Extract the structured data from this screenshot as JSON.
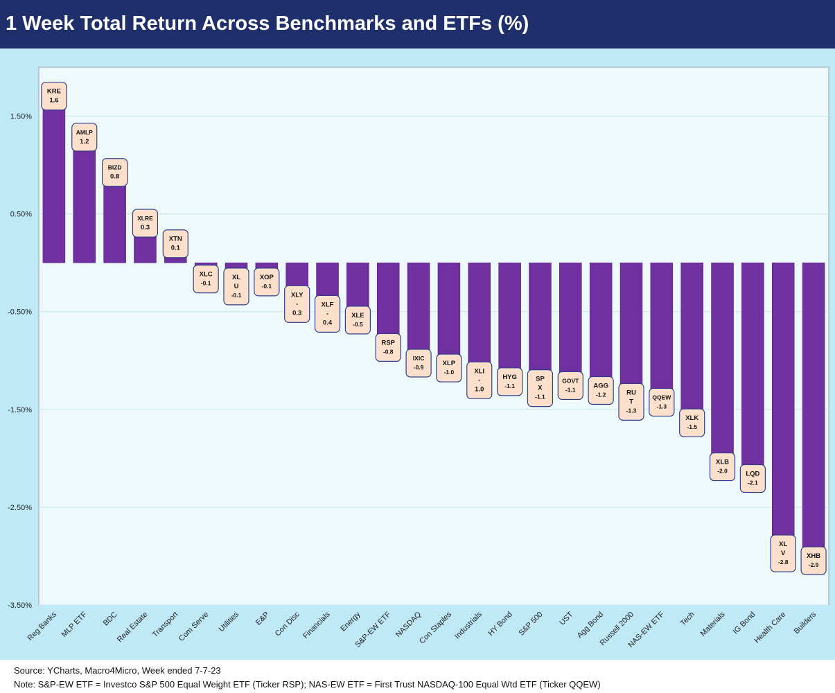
{
  "header": {
    "title": "1 Week Total Return Across Benchmarks and ETFs (%)"
  },
  "footer": {
    "source": "Source: YCharts, Macro4Micro, Week ended 7-7-23",
    "note": "Note: S&P-EW ETF = Investco S&P 500 Equal Weight ETF (Ticker RSP); NAS-EW ETF = First Trust NASDAQ-100 Equal Wtd ETF (Ticker QQEW)"
  },
  "colors": {
    "bar": "#7030a0",
    "bar_edge": "#4a1d7a",
    "label_fill": "#fde0cc",
    "label_border": "#2f3e8c",
    "plot_bg": "#eef9fc",
    "frame_bg": "#bfe9f7",
    "title_bg": "#1f2f6b"
  },
  "chart_data": {
    "type": "bar",
    "title": "1 Week Total Return Across Benchmarks and ETFs (%)",
    "xlabel": "",
    "ylabel": "",
    "ylim": [
      -3.5,
      2.0
    ],
    "yticks": [
      1.5,
      0.5,
      -0.5,
      -1.5,
      -2.5,
      -3.5
    ],
    "ytick_labels": [
      "1.50%",
      "0.50%",
      "-0.50%",
      "-1.50%",
      "-2.50%",
      "-3.50%"
    ],
    "grid": true,
    "categories": [
      "Reg Banks",
      "MLP ETF",
      "BDC",
      "Real Estate",
      "Transport",
      "Com Serve",
      "Utilities",
      "E&P",
      "Con Disc",
      "Financials",
      "Energy",
      "S&P-EW ETF",
      "NASDAQ",
      "Con Staples",
      "Industrials",
      "HY Bond",
      "S&P 500",
      "UST",
      "Agg Bond",
      "Russell 2000",
      "NAS-EW ETF",
      "Tech",
      "Materials",
      "IG Bond",
      "Health Care",
      "Builders"
    ],
    "values": [
      1.57,
      1.15,
      0.79,
      0.27,
      0.06,
      -0.06,
      -0.09,
      -0.09,
      -0.27,
      -0.37,
      -0.48,
      -0.76,
      -0.92,
      -0.97,
      -1.05,
      -1.11,
      -1.13,
      -1.15,
      -1.2,
      -1.27,
      -1.32,
      -1.53,
      -1.98,
      -2.1,
      -2.82,
      -2.94
    ],
    "data_labels": [
      [
        "KRE",
        "1.6"
      ],
      [
        "AMLP",
        "1.2"
      ],
      [
        "BIZD",
        "0.8"
      ],
      [
        "XLRE",
        "0.3"
      ],
      [
        "XTN",
        "0.1"
      ],
      [
        "XLC",
        "-0.1"
      ],
      [
        "XL",
        "U",
        "-0.1"
      ],
      [
        "XOP",
        "-0.1"
      ],
      [
        "XLY",
        "-",
        "0.3"
      ],
      [
        "XLF",
        "-",
        "0.4"
      ],
      [
        "XLE",
        "-0.5"
      ],
      [
        "RSP",
        "-0.8"
      ],
      [
        "IXIC",
        "-0.9"
      ],
      [
        "XLP",
        "-1.0"
      ],
      [
        "XLI",
        "-",
        "1.0"
      ],
      [
        "HYG",
        "-1.1"
      ],
      [
        "SP",
        "X",
        "-1.1"
      ],
      [
        "GOVT",
        "-1.1"
      ],
      [
        "AGG",
        "-1.2"
      ],
      [
        "RU",
        "T",
        "-1.3"
      ],
      [
        "QQEW",
        "-1.3"
      ],
      [
        "XLK",
        "-1.5"
      ],
      [
        "XLB",
        "-2.0"
      ],
      [
        "LQD",
        "-2.1"
      ],
      [
        "XL",
        "V",
        "-2.8"
      ],
      [
        "XHB",
        "-2.9"
      ]
    ]
  }
}
